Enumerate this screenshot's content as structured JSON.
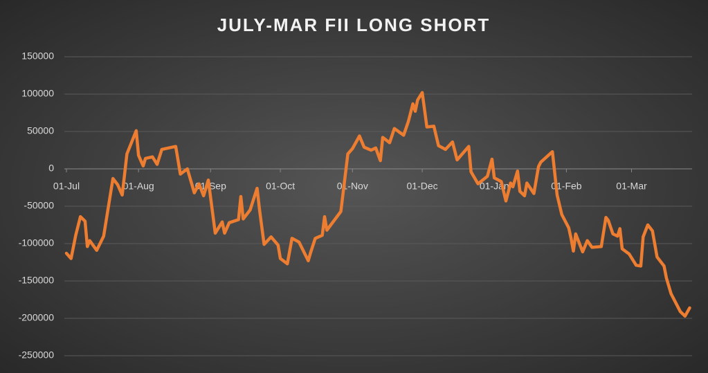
{
  "chart_data": {
    "type": "line",
    "title": "JULY-MAR FII LONG SHORT",
    "color": "#ed7d31",
    "grid": true,
    "x": [
      "01-Jul",
      "03-Jul",
      "05-Jul",
      "07-Jul",
      "09-Jul",
      "10-Jul",
      "11-Jul",
      "14-Jul",
      "17-Jul",
      "21-Jul",
      "23-Jul",
      "25-Jul",
      "27-Jul",
      "31-Jul",
      "01-Aug",
      "03-Aug",
      "04-Aug",
      "07-Aug",
      "09-Aug",
      "11-Aug",
      "17-Aug",
      "19-Aug",
      "22-Aug",
      "25-Aug",
      "27-Aug",
      "29-Aug",
      "31-Aug",
      "03-Sep",
      "06-Sep",
      "07-Sep",
      "09-Sep",
      "13-Sep",
      "14-Sep",
      "15-Sep",
      "18-Sep",
      "21-Sep",
      "22-Sep",
      "24-Sep",
      "27-Sep",
      "30-Sep",
      "01-Oct",
      "04-Oct",
      "06-Oct",
      "09-Oct",
      "13-Oct",
      "14-Oct",
      "16-Oct",
      "19-Oct",
      "20-Oct",
      "21-Oct",
      "27-Oct",
      "30-Oct",
      "01-Nov",
      "04-Nov",
      "06-Nov",
      "09-Nov",
      "11-Nov",
      "13-Nov",
      "14-Nov",
      "17-Nov",
      "19-Nov",
      "23-Nov",
      "25-Nov",
      "27-Nov",
      "28-Nov",
      "29-Nov",
      "01-Dec",
      "03-Dec",
      "06-Dec",
      "08-Dec",
      "11-Dec",
      "14-Dec",
      "16-Dec",
      "21-Dec",
      "22-Dec",
      "25-Dec",
      "29-Dec",
      "31-Dec",
      "01-Jan",
      "04-Jan",
      "06-Jan",
      "08-Jan",
      "09-Jan",
      "11-Jan",
      "12-Jan",
      "14-Jan",
      "15-Jan",
      "18-Jan",
      "20-Jan",
      "21-Jan",
      "26-Jan",
      "28-Jan",
      "30-Jan",
      "02-Feb",
      "03-Feb",
      "04-Feb",
      "05-Feb",
      "08-Feb",
      "10-Feb",
      "12-Feb",
      "16-Feb",
      "18-Feb",
      "19-Feb",
      "21-Feb",
      "23-Feb",
      "24-Feb",
      "25-Feb",
      "28-Feb",
      "03-Mar",
      "05-Mar",
      "06-Mar",
      "08-Mar",
      "10-Mar",
      "12-Mar",
      "15-Mar",
      "16-Mar",
      "18-Mar",
      "22-Mar",
      "24-Mar",
      "26-Mar"
    ],
    "values": [
      -113000,
      -120000,
      -89000,
      -64000,
      -70000,
      -104000,
      -96000,
      -109000,
      -90000,
      -13000,
      -21000,
      -35000,
      20000,
      51000,
      18000,
      4000,
      14000,
      16000,
      6000,
      26000,
      30000,
      -7000,
      0,
      -32000,
      -20000,
      -36000,
      -15000,
      -86000,
      -71000,
      -86000,
      -72000,
      -68000,
      -37000,
      -67000,
      -55000,
      -26000,
      -54000,
      -101000,
      -91000,
      -102000,
      -120000,
      -127000,
      -93000,
      -98000,
      -123000,
      -112000,
      -93000,
      -89000,
      -64000,
      -82000,
      -57000,
      20000,
      27000,
      44000,
      29000,
      25000,
      28000,
      11000,
      42000,
      35000,
      54000,
      45000,
      63000,
      87000,
      77000,
      92000,
      102000,
      56000,
      57000,
      31000,
      26000,
      36000,
      12000,
      30000,
      -4000,
      -20000,
      -10000,
      13000,
      -12000,
      -17000,
      -43000,
      -19000,
      -24000,
      -3000,
      -30000,
      -36000,
      -19000,
      -33000,
      3000,
      9000,
      23000,
      -35000,
      -61000,
      -79000,
      -93000,
      -110000,
      -87000,
      -111000,
      -96000,
      -105000,
      -104000,
      -65000,
      -69000,
      -87000,
      -90000,
      -80000,
      -107000,
      -114000,
      -129000,
      -130000,
      -91000,
      -75000,
      -83000,
      -118000,
      -130000,
      -146000,
      -167000,
      -191000,
      -197000,
      -186000
    ],
    "xticks": [
      "01-Jul",
      "01-Aug",
      "01-Sep",
      "01-Oct",
      "01-Nov",
      "01-Dec",
      "01-Jan",
      "01-Feb",
      "01-Mar"
    ],
    "ylim": [
      -250000,
      150000
    ],
    "yticks": [
      -250000,
      -200000,
      -150000,
      -100000,
      -50000,
      0,
      50000,
      100000,
      150000
    ]
  }
}
